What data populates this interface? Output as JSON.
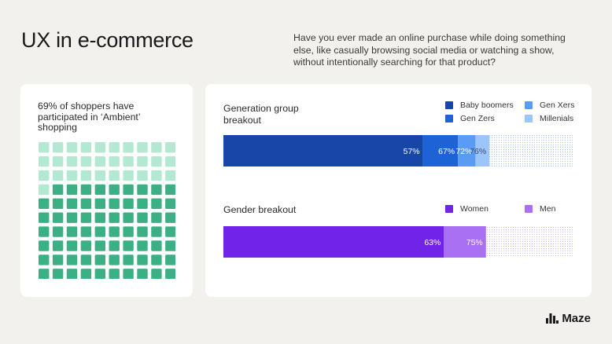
{
  "header": {
    "title": "UX in e-commerce",
    "question": "Have you ever made an online purchase while doing something else, like casually browsing social media or watching a show, without intentionally searching for that product?"
  },
  "waffle": {
    "label": "69% of shoppers have participated in ‘Ambient’ shopping",
    "percent": 69,
    "colors": {
      "filled": "#3bb084",
      "empty": "#b3e8d3"
    }
  },
  "generation": {
    "label": "Generation group breakout",
    "legend": [
      {
        "name": "Baby boomers",
        "color": "#1546a8"
      },
      {
        "name": "Gen Xers",
        "color": "#5a9cf5"
      },
      {
        "name": "Gen Zers",
        "color": "#1e63d6"
      },
      {
        "name": "Millenials",
        "color": "#9cc6fb"
      }
    ]
  },
  "gender": {
    "label": "Gender breakout",
    "legend": [
      {
        "name": "Women",
        "color": "#7124e8"
      },
      {
        "name": "Men",
        "color": "#a970f3"
      }
    ]
  },
  "chart_data": [
    {
      "type": "bar",
      "title": "Generation group breakout",
      "orientation": "horizontal-cumulative",
      "categories": [
        "Baby boomers",
        "Gen Zers",
        "Gen Xers",
        "Millenials"
      ],
      "values": [
        57,
        67,
        72,
        76
      ],
      "labels": [
        "57%",
        "67%",
        "72%",
        "76%"
      ],
      "colors": [
        "#1546a8",
        "#1e63d6",
        "#5a9cf5",
        "#9cc6fb"
      ],
      "xlim": [
        0,
        100
      ]
    },
    {
      "type": "bar",
      "title": "Gender breakout",
      "orientation": "horizontal-cumulative",
      "categories": [
        "Women",
        "Men"
      ],
      "values": [
        63,
        75
      ],
      "labels": [
        "63%",
        "75%"
      ],
      "colors": [
        "#7124e8",
        "#a970f3"
      ],
      "xlim": [
        0,
        100
      ]
    }
  ],
  "brand": {
    "logo_text": "Maze"
  }
}
